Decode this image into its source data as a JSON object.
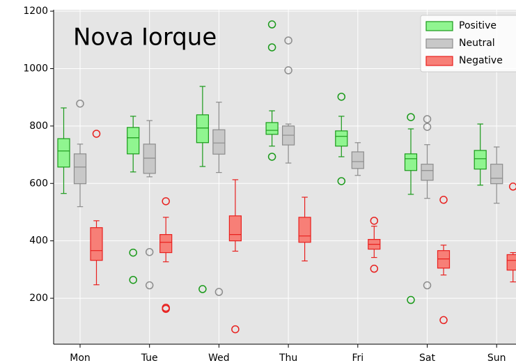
{
  "chart_data": {
    "type": "box",
    "title": "Nova Iorque",
    "categories": [
      "Mon",
      "Tue",
      "Wed",
      "Thu",
      "Fri",
      "Sat",
      "Sun"
    ],
    "ylim": [
      40,
      1205
    ],
    "yticks": [
      200,
      400,
      600,
      800,
      1000,
      1200
    ],
    "grid": true,
    "legend": "upper right",
    "series": [
      {
        "name": "Positive",
        "color": "#90f590",
        "edge_color": "#1a9a1a",
        "values": [
          {
            "min": 565,
            "q1": 657,
            "median": 713,
            "q3": 756,
            "max": 863,
            "outliers": []
          },
          {
            "min": 640,
            "q1": 703,
            "median": 759,
            "q3": 795,
            "max": 834,
            "outliers": [
              359,
              264
            ]
          },
          {
            "min": 659,
            "q1": 742,
            "median": 793,
            "q3": 839,
            "max": 938,
            "outliers": [
              232
            ]
          },
          {
            "min": 730,
            "q1": 771,
            "median": 785,
            "q3": 812,
            "max": 853,
            "outliers": [
              1154,
              1074,
              693
            ]
          },
          {
            "min": 693,
            "q1": 730,
            "median": 764,
            "q3": 783,
            "max": 834,
            "outliers": [
              902,
              608
            ]
          },
          {
            "min": 562,
            "q1": 645,
            "median": 686,
            "q3": 703,
            "max": 790,
            "outliers": [
              831,
              194
            ]
          },
          {
            "min": 594,
            "q1": 650,
            "median": 686,
            "q3": 715,
            "max": 807,
            "outliers": []
          }
        ]
      },
      {
        "name": "Neutral",
        "color": "#c8c8c8",
        "edge_color": "#8c8c8c",
        "values": [
          {
            "min": 519,
            "q1": 599,
            "median": 657,
            "q3": 703,
            "max": 737,
            "outliers": [
              878
            ]
          },
          {
            "min": 623,
            "q1": 635,
            "median": 688,
            "q3": 737,
            "max": 819,
            "outliers": [
              361,
              245
            ]
          },
          {
            "min": 638,
            "q1": 702,
            "median": 741,
            "q3": 787,
            "max": 883,
            "outliers": [
              222
            ]
          },
          {
            "min": 671,
            "q1": 734,
            "median": 768,
            "q3": 800,
            "max": 807,
            "outliers": [
              1098,
              994
            ]
          },
          {
            "min": 628,
            "q1": 652,
            "median": 676,
            "q3": 710,
            "max": 742,
            "outliers": []
          },
          {
            "min": 548,
            "q1": 611,
            "median": 645,
            "q3": 667,
            "max": 735,
            "outliers": [
              824,
              797,
              245
            ]
          },
          {
            "min": 531,
            "q1": 599,
            "median": 618,
            "q3": 667,
            "max": 727,
            "outliers": []
          }
        ]
      },
      {
        "name": "Negative",
        "color": "#f77f77",
        "edge_color": "#e8201e",
        "values": [
          {
            "min": 247,
            "q1": 332,
            "median": 366,
            "q3": 446,
            "max": 470,
            "outliers": [
              773
            ]
          },
          {
            "min": 327,
            "q1": 359,
            "median": 395,
            "q3": 422,
            "max": 482,
            "outliers": [
              538,
              167,
              163
            ]
          },
          {
            "min": 364,
            "q1": 400,
            "median": 422,
            "q3": 487,
            "max": 613,
            "outliers": [
              92
            ]
          },
          {
            "min": 330,
            "q1": 395,
            "median": 417,
            "q3": 482,
            "max": 552,
            "outliers": []
          },
          {
            "min": 342,
            "q1": 371,
            "median": 388,
            "q3": 405,
            "max": 451,
            "outliers": [
              470,
              303
            ]
          },
          {
            "min": 281,
            "q1": 305,
            "median": 337,
            "q3": 366,
            "max": 385,
            "outliers": [
              543,
              124
            ]
          },
          {
            "min": 257,
            "q1": 298,
            "median": 332,
            "q3": 352,
            "max": 359,
            "outliers": [
              589
            ]
          }
        ]
      }
    ]
  }
}
